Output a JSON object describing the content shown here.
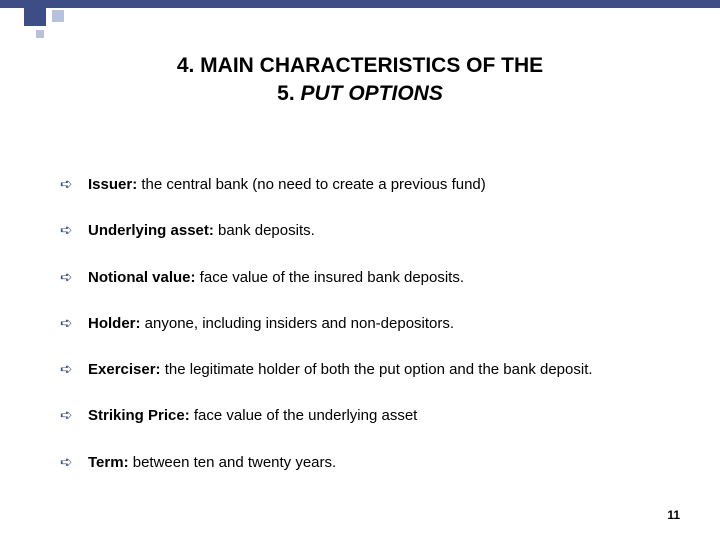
{
  "decor": {
    "bar_color": "#3d4e87",
    "accent_light": "#b8c1dc"
  },
  "title": {
    "line1_num": "4.",
    "line1_text": "MAIN CHARACTERISTICS OF THE",
    "line2_num": "5.",
    "line2_text": "PUT OPTIONS"
  },
  "bullets": [
    {
      "label": "Issuer:",
      "text": " the central bank (no need to create a previous fund)"
    },
    {
      "label": "Underlying asset:",
      "text": " bank deposits."
    },
    {
      "label": "Notional value:",
      "text": " face value of the insured bank deposits."
    },
    {
      "label": "Holder:",
      "text": " anyone, including insiders and non-depositors."
    },
    {
      "label": "Exerciser:",
      "text": " the legitimate holder of both the put option and the bank deposit."
    },
    {
      "label": "Striking Price:",
      "text": " face value of the underlying asset"
    },
    {
      "label": "Term:",
      "text": " between ten and twenty years."
    }
  ],
  "page_number": "11",
  "bullet_glyph": "➪"
}
